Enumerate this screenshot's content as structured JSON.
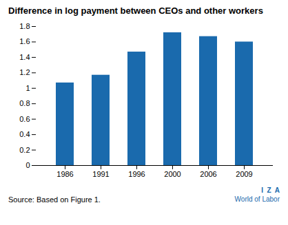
{
  "chart_data": {
    "type": "bar",
    "title": "Difference in log payment between CEOs and other workers",
    "categories": [
      "1986",
      "1991",
      "1996",
      "2000",
      "2006",
      "2009"
    ],
    "values": [
      1.07,
      1.17,
      1.47,
      1.72,
      1.67,
      1.6
    ],
    "color": "#1a6aad",
    "ylim": [
      0,
      1.8
    ],
    "yticks": [
      0,
      0.2,
      0.4,
      0.6,
      0.8,
      1,
      1.2,
      1.4,
      1.6,
      1.8
    ],
    "grid": false,
    "caption": "Source: Based on Figure 1.",
    "annotations": [
      "I  Z  A",
      "World of Labor"
    ]
  }
}
